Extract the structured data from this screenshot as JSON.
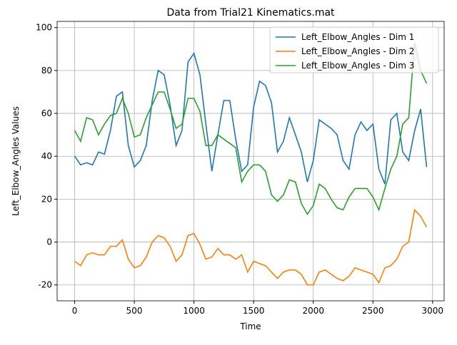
{
  "chart_data": {
    "type": "line",
    "title": "Data from Trial21 Kinematics.mat",
    "x_label": "Time",
    "y_label": "Left_Elbow_Angles Values",
    "x": [
      0,
      50,
      100,
      150,
      200,
      250,
      300,
      350,
      400,
      450,
      500,
      550,
      600,
      650,
      700,
      750,
      800,
      850,
      900,
      950,
      1000,
      1050,
      1100,
      1150,
      1200,
      1250,
      1300,
      1350,
      1400,
      1450,
      1500,
      1550,
      1600,
      1650,
      1700,
      1750,
      1800,
      1850,
      1900,
      1950,
      2000,
      2050,
      2100,
      2150,
      2200,
      2250,
      2300,
      2350,
      2400,
      2450,
      2500,
      2550,
      2600,
      2650,
      2700,
      2750,
      2800,
      2850,
      2900,
      2950
    ],
    "series": [
      {
        "name": "Left_Elbow_Angles - Dim 1",
        "color": "#1f77b4",
        "values": [
          40,
          36,
          37,
          36,
          42,
          41,
          52,
          68,
          70,
          45,
          35,
          38,
          45,
          66,
          80,
          78,
          64,
          45,
          52,
          84,
          88,
          78,
          55,
          33,
          50,
          66,
          66,
          48,
          33,
          36,
          63,
          75,
          73,
          65,
          42,
          47,
          58,
          50,
          42,
          28,
          38,
          57,
          55,
          53,
          50,
          38,
          34,
          50,
          56,
          52,
          55,
          34,
          27,
          57,
          60,
          42,
          38,
          52,
          62,
          35
        ]
      },
      {
        "name": "Left_Elbow_Angles - Dim 2",
        "color": "#ff7f0e",
        "values": [
          -9,
          -11,
          -6,
          -5,
          -6,
          -6,
          -2,
          -2,
          1,
          -8,
          -12,
          -11,
          -7,
          0,
          3,
          2,
          -2,
          -9,
          -6,
          3,
          4,
          -1,
          -8,
          -7,
          -3,
          -6,
          -6,
          -8,
          -6,
          -14,
          -9,
          -10,
          -11,
          -14,
          -17,
          -14,
          -13,
          -13,
          -15,
          -20,
          -20,
          -14,
          -13,
          -15,
          -17,
          -18,
          -16,
          -12,
          -13,
          -14,
          -15,
          -19,
          -12,
          -11,
          -8,
          -2,
          0,
          15,
          12,
          7
        ]
      },
      {
        "name": "Left_Elbow_Angles - Dim 3",
        "color": "#2ca02c",
        "values": [
          52,
          47,
          58,
          57,
          50,
          55,
          59,
          60,
          67,
          60,
          49,
          50,
          58,
          64,
          70,
          70,
          62,
          53,
          55,
          67,
          67,
          61,
          45,
          45,
          50,
          48,
          46,
          44,
          28,
          33,
          36,
          36,
          33,
          22,
          19,
          22,
          29,
          28,
          18,
          13,
          17,
          27,
          25,
          20,
          16,
          15,
          21,
          25,
          25,
          25,
          21,
          15,
          25,
          34,
          40,
          55,
          58,
          93,
          80,
          74
        ]
      }
    ],
    "xlim": [
      -147,
      3097
    ],
    "ylim": [
      -27.4,
      102.9
    ],
    "xticks": [
      0,
      500,
      1000,
      1500,
      2000,
      2500,
      3000
    ],
    "yticks": [
      -20,
      0,
      20,
      40,
      60,
      80,
      100
    ],
    "grid": true,
    "legend": "upper right"
  }
}
